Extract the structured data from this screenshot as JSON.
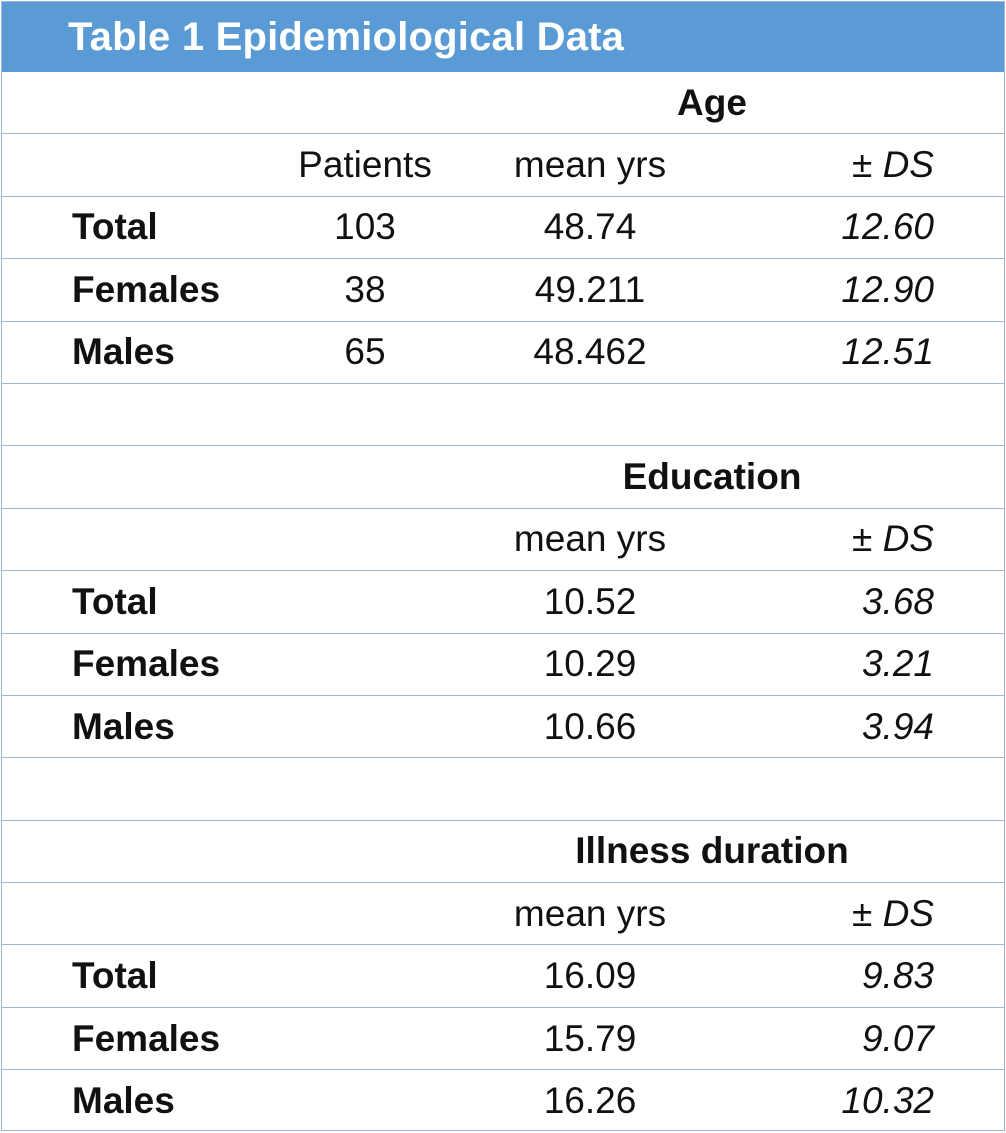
{
  "title": "Table 1 Epidemiological Data",
  "sections": [
    {
      "heading": "Age",
      "col_patients": "Patients",
      "col_mean": "mean yrs",
      "col_sd": "± DS",
      "rows": [
        {
          "label": "Total",
          "patients": "103",
          "mean": "48.74",
          "sd": "12.60"
        },
        {
          "label": "Females",
          "patients": "38",
          "mean": "49.211",
          "sd": "12.90"
        },
        {
          "label": "Males",
          "patients": "65",
          "mean": "48.462",
          "sd": "12.51"
        }
      ]
    },
    {
      "heading": "Education",
      "col_mean": "mean yrs",
      "col_sd": "± DS",
      "rows": [
        {
          "label": "Total",
          "mean": "10.52",
          "sd": "3.68"
        },
        {
          "label": "Females",
          "mean": "10.29",
          "sd": "3.21"
        },
        {
          "label": "Males",
          "mean": "10.66",
          "sd": "3.94"
        }
      ]
    },
    {
      "heading": "Illness duration",
      "col_mean": "mean yrs",
      "col_sd": "± DS",
      "rows": [
        {
          "label": "Total",
          "mean": "16.09",
          "sd": "9.83"
        },
        {
          "label": "Females",
          "mean": "15.79",
          "sd": "9.07"
        },
        {
          "label": "Males",
          "mean": "16.26",
          "sd": "10.32"
        }
      ]
    }
  ]
}
